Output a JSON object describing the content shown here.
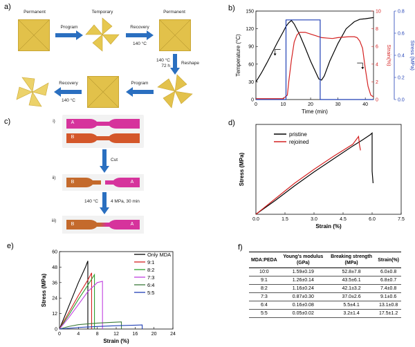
{
  "panels": {
    "a": {
      "label": "a)",
      "states": [
        "Permanent",
        "Temporary",
        "Permanent"
      ],
      "step_program": "Program",
      "step_recovery": "Recovery",
      "temp_140": "140 °C",
      "reshape_line1": "140 °C",
      "reshape_line2": "72 h",
      "reshape": "Reshape"
    },
    "b": {
      "label": "b)"
    },
    "c": {
      "label": "c)",
      "stage_i": "i)",
      "stage_ii": "ii)",
      "stage_iii": "iii)",
      "letter_a": "A",
      "letter_b": "B",
      "cut": "Cut",
      "heal_temp": "140 °C",
      "heal_cond": "4 MPa, 30 min"
    },
    "d": {
      "label": "d)"
    },
    "e": {
      "label": "e)"
    },
    "f": {
      "label": "f)"
    }
  },
  "chart_data": [
    {
      "id": "b",
      "type": "line",
      "xlabel": "Time (min)",
      "xlim": [
        0,
        43
      ],
      "xticks": [
        0,
        10,
        20,
        30,
        40
      ],
      "axes": [
        {
          "label": "Temperature (°C)",
          "lim": [
            0,
            150
          ],
          "ticks": [
            0,
            30,
            60,
            90,
            120,
            150
          ]
        },
        {
          "label": "Strain(%)",
          "lim": [
            0,
            10
          ],
          "ticks": [
            0,
            2,
            4,
            6,
            8,
            10
          ]
        },
        {
          "label": "Stress (MPa)",
          "lim": [
            0,
            0.8
          ],
          "ticks": [
            0.0,
            0.2,
            0.4,
            0.6,
            0.8
          ]
        }
      ],
      "series": [
        {
          "name": "Temperature",
          "axis": 0,
          "color": "#000000",
          "x": [
            0,
            2,
            4,
            6,
            8,
            10,
            11,
            12,
            13,
            14,
            16,
            18,
            20,
            22,
            23,
            24,
            25,
            27,
            30,
            33,
            36,
            38,
            40,
            43
          ],
          "y": [
            30,
            45,
            62,
            80,
            98,
            115,
            124,
            130,
            134,
            128,
            110,
            88,
            65,
            45,
            35,
            33,
            40,
            65,
            95,
            120,
            132,
            136,
            137,
            139
          ]
        },
        {
          "name": "Strain",
          "axis": 1,
          "color": "#d42020",
          "x": [
            0,
            5,
            10,
            11.5,
            12,
            13,
            14,
            15,
            16,
            18,
            20,
            22,
            24,
            26,
            28,
            30,
            32,
            34,
            36,
            37,
            38,
            39,
            40,
            41,
            42,
            43
          ],
          "y": [
            0.1,
            0.1,
            0.1,
            0.5,
            2,
            4.5,
            6.5,
            7.3,
            7.6,
            7.6,
            7.4,
            7.2,
            7.0,
            6.95,
            6.9,
            7.0,
            7.05,
            7.1,
            7.1,
            7.0,
            6.6,
            5.8,
            3.5,
            1.5,
            0.5,
            0.3
          ]
        },
        {
          "name": "Stress",
          "axis": 2,
          "color": "#1f3fb5",
          "step": true,
          "x": [
            0,
            11,
            11,
            23.5,
            23.5,
            43
          ],
          "y": [
            0,
            0,
            0.72,
            0.72,
            0,
            0
          ]
        }
      ],
      "annotations": [
        {
          "x": 9,
          "y": 85,
          "dir": "left"
        },
        {
          "x": 37,
          "y": 62,
          "dir": "right"
        }
      ]
    },
    {
      "id": "d",
      "type": "line",
      "xlabel": "Strain (%)",
      "ylabel": "Stress (MPa)",
      "xlim": [
        0,
        7.5
      ],
      "xticks": [
        0,
        1.5,
        3.0,
        4.5,
        6.0,
        7.5
      ],
      "ylim": [
        0,
        52
      ],
      "legend": [
        "pristine",
        "rejoined"
      ],
      "series": [
        {
          "name": "pristine",
          "color": "#000000",
          "x": [
            0,
            1,
            2,
            3,
            4,
            5,
            5.5,
            5.9,
            6.0,
            6.0,
            6.05
          ],
          "y": [
            0,
            8,
            16.5,
            24.5,
            32,
            39.5,
            43,
            46,
            47,
            25,
            18
          ]
        },
        {
          "name": "rejoined",
          "color": "#d42020",
          "x": [
            0,
            1,
            2,
            3,
            4,
            5,
            5.3,
            5.35,
            5.4
          ],
          "y": [
            0,
            9,
            18,
            26,
            33.5,
            40.5,
            45,
            40,
            37
          ]
        }
      ]
    },
    {
      "id": "e",
      "type": "line",
      "xlabel": "Strain (%)",
      "ylabel": "Stress (MPa)",
      "xlim": [
        0,
        24
      ],
      "xticks": [
        0,
        4,
        8,
        12,
        16,
        20,
        24
      ],
      "ylim": [
        0,
        60
      ],
      "yticks": [
        0,
        12,
        24,
        36,
        48,
        60
      ],
      "legend_title": "",
      "series": [
        {
          "name": "Only MDA",
          "color": "#000000",
          "x": [
            0,
            2,
            4,
            5.5,
            6.0,
            6.0
          ],
          "y": [
            0,
            18,
            36,
            48,
            52.8,
            0
          ]
        },
        {
          "name": "9:1",
          "color": "#d42020",
          "x": [
            0,
            2,
            4,
            6,
            6.8,
            6.8
          ],
          "y": [
            0,
            13,
            26,
            38,
            43.5,
            0
          ]
        },
        {
          "name": "8:2",
          "color": "#2da02d",
          "x": [
            0,
            2,
            4,
            6,
            7.4,
            7.4
          ],
          "y": [
            0,
            11,
            23,
            34,
            42.1,
            0
          ]
        },
        {
          "name": "7:3",
          "color": "#c040e0",
          "x": [
            0,
            2,
            4,
            6,
            8,
            9.1,
            9.1
          ],
          "y": [
            0,
            9,
            19,
            29,
            36,
            37.0,
            0
          ]
        },
        {
          "name": "6:4",
          "color": "#3a7a3a",
          "x": [
            0,
            2,
            4,
            8,
            12,
            13.1,
            13.1
          ],
          "y": [
            0,
            2,
            3.4,
            4.6,
            5.3,
            5.5,
            0
          ]
        },
        {
          "name": "5:5",
          "color": "#1f3fb5",
          "x": [
            0,
            4,
            8,
            12,
            16,
            17.5,
            17.5
          ],
          "y": [
            0,
            1.2,
            2.0,
            2.6,
            3.0,
            3.2,
            0
          ]
        }
      ]
    },
    {
      "id": "f",
      "type": "table",
      "columns": [
        "MDA:PEDA",
        "Young's modulus (GPa)",
        "Breaking strength (MPa)",
        "Strain(%)"
      ],
      "rows": [
        [
          "10:0",
          "1.59±0.19",
          "52.8±7.8",
          "6.0±0.8"
        ],
        [
          "9:1",
          "1.26±0.14",
          "43.5±6.1",
          "6.8±0.7"
        ],
        [
          "8:2",
          "1.16±0.24",
          "42.1±3.2",
          "7.4±0.8"
        ],
        [
          "7:3",
          "0.87±0.30",
          "37.0±2.6",
          "9.1±0.6"
        ],
        [
          "6:4",
          "0.16±0.08",
          "5.5±4.1",
          "13.1±0.8"
        ],
        [
          "5:5",
          "0.05±0.02",
          "3.2±1.4",
          "17.5±1.2"
        ]
      ]
    }
  ]
}
